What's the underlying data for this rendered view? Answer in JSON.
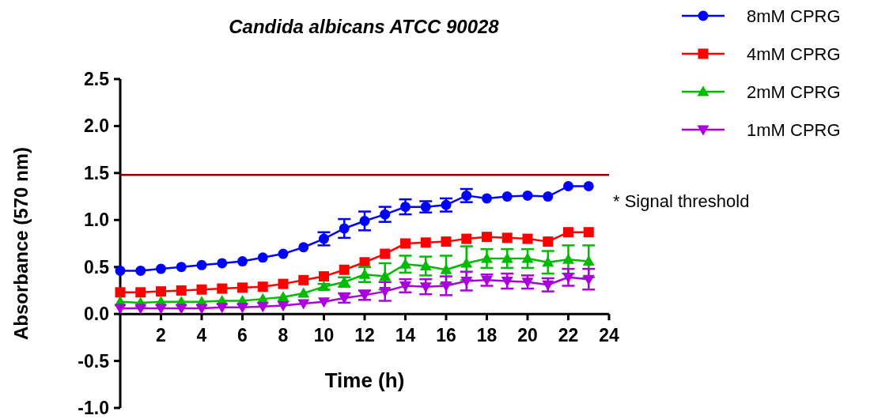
{
  "chart_data": {
    "type": "line",
    "title": "Candida albicans ATCC 90028",
    "xlabel": "Time (h)",
    "ylabel": "Absorbance (570 nm)",
    "x": [
      0,
      1,
      2,
      3,
      4,
      5,
      6,
      7,
      8,
      9,
      10,
      11,
      12,
      13,
      14,
      15,
      16,
      17,
      18,
      19,
      20,
      21,
      22,
      23
    ],
    "xlim": [
      0,
      24
    ],
    "xticks": [
      2,
      4,
      6,
      8,
      10,
      12,
      14,
      16,
      18,
      20,
      22,
      24
    ],
    "ylim": [
      -1,
      2.5
    ],
    "yticks": [
      {
        "value": -1,
        "label": "-1.0"
      },
      {
        "value": -0.5,
        "label": "-0.5"
      },
      {
        "value": 0,
        "label": "0.0"
      },
      {
        "value": 0.5,
        "label": "0.5"
      },
      {
        "value": 1,
        "label": "1.0"
      },
      {
        "value": 1.5,
        "label": "1.5"
      },
      {
        "value": 2,
        "label": "2.0"
      },
      {
        "value": 2.5,
        "label": "2.5"
      }
    ],
    "grid": false,
    "legend": "top right",
    "line_style": "solid",
    "ref_lines": [
      {
        "axis": "y",
        "value": 1.48,
        "label": "* Signal threshold",
        "color": "#8b0000"
      }
    ],
    "series": [
      {
        "name": "8mM CPRG",
        "color": "#0000ff",
        "marker": "circle",
        "values": [
          0.46,
          0.46,
          0.48,
          0.5,
          0.52,
          0.54,
          0.56,
          0.6,
          0.64,
          0.71,
          0.8,
          0.91,
          0.99,
          1.06,
          1.14,
          1.14,
          1.16,
          1.26,
          1.23,
          1.25,
          1.26,
          1.25,
          1.36,
          1.36
        ],
        "errors": [
          null,
          null,
          null,
          null,
          null,
          null,
          null,
          null,
          null,
          null,
          0.07,
          0.1,
          0.1,
          0.08,
          0.08,
          0.06,
          0.07,
          0.07,
          null,
          null,
          null,
          null,
          null,
          null
        ]
      },
      {
        "name": "4mM CPRG",
        "color": "#ff0000",
        "marker": "square",
        "values": [
          0.23,
          0.23,
          0.24,
          0.25,
          0.26,
          0.27,
          0.28,
          0.29,
          0.32,
          0.36,
          0.4,
          0.47,
          0.55,
          0.64,
          0.75,
          0.76,
          0.77,
          0.8,
          0.82,
          0.81,
          0.8,
          0.77,
          0.87,
          0.87
        ]
      },
      {
        "name": "2mM CPRG",
        "color": "#00bb00",
        "marker": "triangle",
        "values": [
          0.13,
          0.12,
          0.13,
          0.13,
          0.13,
          0.14,
          0.14,
          0.16,
          0.18,
          0.22,
          0.29,
          0.34,
          0.42,
          0.4,
          0.53,
          0.51,
          0.47,
          0.54,
          0.59,
          0.59,
          0.59,
          0.55,
          0.58,
          0.56
        ],
        "errors": [
          null,
          null,
          null,
          null,
          null,
          null,
          null,
          null,
          null,
          null,
          0.03,
          0.05,
          0.08,
          0.14,
          0.09,
          0.1,
          0.15,
          0.18,
          0.1,
          0.1,
          0.1,
          0.12,
          0.15,
          0.17
        ]
      },
      {
        "name": "1mM CPRG",
        "color": "#aa00dd",
        "marker": "triangle-down",
        "values": [
          0.06,
          0.06,
          0.06,
          0.06,
          0.06,
          0.07,
          0.07,
          0.08,
          0.09,
          0.11,
          0.13,
          0.17,
          0.2,
          0.24,
          0.3,
          0.29,
          0.3,
          0.35,
          0.36,
          0.35,
          0.34,
          0.31,
          0.39,
          0.37
        ],
        "errors": [
          null,
          null,
          null,
          null,
          null,
          null,
          null,
          null,
          null,
          null,
          null,
          0.05,
          0.05,
          0.1,
          0.07,
          0.08,
          0.1,
          0.1,
          0.06,
          0.08,
          0.07,
          0.07,
          0.09,
          0.11
        ]
      }
    ]
  }
}
